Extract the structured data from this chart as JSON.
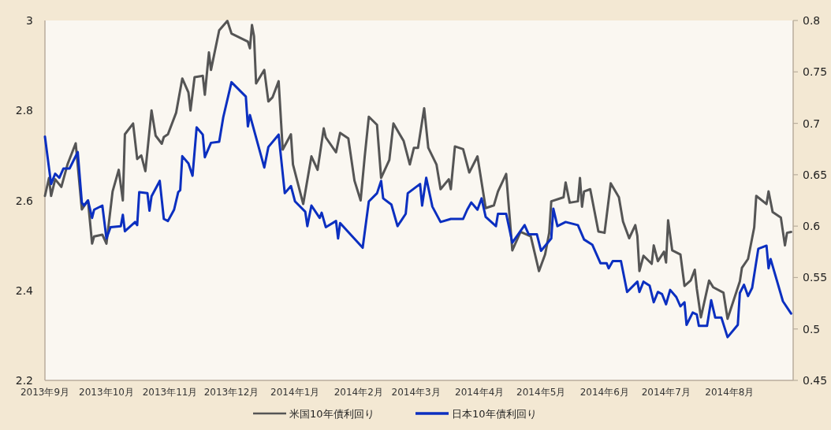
{
  "chart_data": {
    "type": "line",
    "xlim": [
      "2013-09-01",
      "2014-09-01"
    ],
    "xticks": [
      {
        "value": "2013-09-01",
        "label": "2013年9月"
      },
      {
        "value": "2013-10-01",
        "label": "2013年10月"
      },
      {
        "value": "2013-11-01",
        "label": "2013年11月"
      },
      {
        "value": "2013-12-01",
        "label": "2013年12月"
      },
      {
        "value": "2014-01-01",
        "label": "2014年1月"
      },
      {
        "value": "2014-02-01",
        "label": "2014年2月"
      },
      {
        "value": "2014-03-01",
        "label": "2014年3月"
      },
      {
        "value": "2014-04-01",
        "label": "2014年4月"
      },
      {
        "value": "2014-05-01",
        "label": "2014年5月"
      },
      {
        "value": "2014-06-01",
        "label": "2014年6月"
      },
      {
        "value": "2014-07-01",
        "label": "2014年7月"
      },
      {
        "value": "2014-08-01",
        "label": "2014年8月"
      }
    ],
    "ylim": [
      2.2,
      3
    ],
    "yticks": [
      2.2,
      2.4,
      2.6,
      2.8,
      3
    ],
    "y2lim": [
      0.45,
      0.8
    ],
    "y2ticks": [
      0.45,
      0.5,
      0.55,
      0.6,
      0.65,
      0.7,
      0.75,
      0.8
    ],
    "legend": "bottom",
    "grid": false,
    "series": [
      {
        "name": "米国10年債利回り",
        "color": "#555555",
        "x": [
          "2013-09-01",
          "2013-09-03",
          "2013-09-04",
          "2013-09-06",
          "2013-09-09",
          "2013-09-12",
          "2013-09-16",
          "2013-09-19",
          "2013-09-22",
          "2013-09-24",
          "2013-09-25",
          "2013-09-29",
          "2013-10-01",
          "2013-10-04",
          "2013-10-07",
          "2013-10-09",
          "2013-10-10",
          "2013-10-14",
          "2013-10-16",
          "2013-10-18",
          "2013-10-20",
          "2013-10-23",
          "2013-10-25",
          "2013-10-28",
          "2013-10-29",
          "2013-10-31",
          "2013-11-04",
          "2013-11-07",
          "2013-11-10",
          "2013-11-11",
          "2013-11-13",
          "2013-11-17",
          "2013-11-18",
          "2013-11-20",
          "2013-11-21",
          "2013-11-25",
          "2013-11-29",
          "2013-12-01",
          "2013-12-09",
          "2013-12-10",
          "2013-12-11",
          "2013-12-12",
          "2013-12-13",
          "2013-12-17",
          "2013-12-19",
          "2013-12-21",
          "2013-12-24",
          "2013-12-26",
          "2013-12-30",
          "2013-12-31",
          "2014-01-05",
          "2014-01-09",
          "2014-01-12",
          "2014-01-15",
          "2014-01-16",
          "2014-01-21",
          "2014-01-23",
          "2014-01-27",
          "2014-01-30",
          "2014-02-02",
          "2014-02-04",
          "2014-02-06",
          "2014-02-10",
          "2014-02-12",
          "2014-02-16",
          "2014-02-18",
          "2014-02-23",
          "2014-02-26",
          "2014-02-28",
          "2014-03-02",
          "2014-03-05",
          "2014-03-07",
          "2014-03-11",
          "2014-03-13",
          "2014-03-17",
          "2014-03-18",
          "2014-03-20",
          "2014-03-24",
          "2014-03-27",
          "2014-03-31",
          "2014-04-04",
          "2014-04-08",
          "2014-04-10",
          "2014-04-14",
          "2014-04-17",
          "2014-04-21",
          "2014-04-26",
          "2014-04-30",
          "2014-05-03",
          "2014-05-05",
          "2014-05-06",
          "2014-05-12",
          "2014-05-13",
          "2014-05-15",
          "2014-05-19",
          "2014-05-20",
          "2014-05-21",
          "2014-05-22",
          "2014-05-25",
          "2014-05-29",
          "2014-06-01",
          "2014-06-04",
          "2014-06-08",
          "2014-06-10",
          "2014-06-13",
          "2014-06-16",
          "2014-06-17",
          "2014-06-18",
          "2014-06-20",
          "2014-06-24",
          "2014-06-25",
          "2014-06-27",
          "2014-06-30",
          "2014-07-01",
          "2014-07-02",
          "2014-07-04",
          "2014-07-08",
          "2014-07-10",
          "2014-07-13",
          "2014-07-15",
          "2014-07-16",
          "2014-07-18",
          "2014-07-22",
          "2014-07-24",
          "2014-07-29",
          "2014-07-31",
          "2014-08-06",
          "2014-08-07",
          "2014-08-10",
          "2014-08-13",
          "2014-08-14",
          "2014-08-19",
          "2014-08-20",
          "2014-08-22",
          "2014-08-26",
          "2014-08-28",
          "2014-08-29",
          "2014-08-31"
        ],
        "values": [
          2.61,
          2.65,
          2.61,
          2.647,
          2.63,
          2.68,
          2.727,
          2.58,
          2.6,
          2.504,
          2.52,
          2.524,
          2.504,
          2.62,
          2.668,
          2.6,
          2.747,
          2.771,
          2.692,
          2.7,
          2.665,
          2.8,
          2.744,
          2.726,
          2.741,
          2.747,
          2.795,
          2.871,
          2.84,
          2.8,
          2.874,
          2.877,
          2.835,
          2.929,
          2.89,
          2.978,
          2.999,
          2.971,
          2.953,
          2.938,
          2.99,
          2.965,
          2.86,
          2.89,
          2.82,
          2.829,
          2.865,
          2.713,
          2.747,
          2.68,
          2.592,
          2.698,
          2.668,
          2.76,
          2.74,
          2.707,
          2.75,
          2.738,
          2.644,
          2.6,
          2.698,
          2.786,
          2.768,
          2.65,
          2.69,
          2.771,
          2.732,
          2.68,
          2.717,
          2.717,
          2.805,
          2.717,
          2.68,
          2.625,
          2.647,
          2.625,
          2.72,
          2.714,
          2.662,
          2.698,
          2.583,
          2.589,
          2.62,
          2.659,
          2.489,
          2.53,
          2.52,
          2.443,
          2.48,
          2.528,
          2.598,
          2.607,
          2.64,
          2.595,
          2.598,
          2.65,
          2.586,
          2.62,
          2.625,
          2.531,
          2.528,
          2.638,
          2.607,
          2.553,
          2.516,
          2.545,
          2.521,
          2.443,
          2.477,
          2.459,
          2.5,
          2.465,
          2.486,
          2.462,
          2.556,
          2.489,
          2.48,
          2.41,
          2.422,
          2.446,
          2.404,
          2.34,
          2.422,
          2.407,
          2.395,
          2.337,
          2.42,
          2.45,
          2.47,
          2.54,
          2.61,
          2.592,
          2.62,
          2.574,
          2.562,
          2.5,
          2.528,
          2.53
        ]
      },
      {
        "name": "日本10年債利回り",
        "color": "#0b2fc0",
        "axis": "y2",
        "x": [
          "2013-09-01",
          "2013-09-04",
          "2013-09-06",
          "2013-09-08",
          "2013-09-10",
          "2013-09-13",
          "2013-09-17",
          "2013-09-19",
          "2013-09-20",
          "2013-09-22",
          "2013-09-24",
          "2013-09-25",
          "2013-09-29",
          "2013-10-01",
          "2013-10-03",
          "2013-10-08",
          "2013-10-09",
          "2013-10-10",
          "2013-10-15",
          "2013-10-16",
          "2013-10-17",
          "2013-10-21",
          "2013-10-22",
          "2013-10-23",
          "2013-10-27",
          "2013-10-29",
          "2013-10-31",
          "2013-11-03",
          "2013-11-05",
          "2013-11-06",
          "2013-11-07",
          "2013-11-10",
          "2013-11-12",
          "2013-11-14",
          "2013-11-17",
          "2013-11-18",
          "2013-11-21",
          "2013-11-25",
          "2013-11-27",
          "2013-12-01",
          "2013-12-08",
          "2013-12-09",
          "2013-12-10",
          "2013-12-17",
          "2013-12-19",
          "2013-12-24",
          "2013-12-27",
          "2013-12-30",
          "2014-01-01",
          "2014-01-06",
          "2014-01-07",
          "2014-01-09",
          "2014-01-13",
          "2014-01-14",
          "2014-01-16",
          "2014-01-21",
          "2014-01-22",
          "2014-01-23",
          "2014-01-28",
          "2014-02-03",
          "2014-02-06",
          "2014-02-10",
          "2014-02-12",
          "2014-02-13",
          "2014-02-17",
          "2014-02-20",
          "2014-02-24",
          "2014-02-25",
          "2014-03-03",
          "2014-03-04",
          "2014-03-06",
          "2014-03-09",
          "2014-03-13",
          "2014-03-18",
          "2014-03-24",
          "2014-03-26",
          "2014-03-28",
          "2014-03-31",
          "2014-04-02",
          "2014-04-04",
          "2014-04-09",
          "2014-04-10",
          "2014-04-14",
          "2014-04-17",
          "2014-04-23",
          "2014-04-25",
          "2014-04-29",
          "2014-05-01",
          "2014-05-06",
          "2014-05-07",
          "2014-05-09",
          "2014-05-13",
          "2014-05-19",
          "2014-05-22",
          "2014-05-26",
          "2014-05-30",
          "2014-06-02",
          "2014-06-03",
          "2014-06-05",
          "2014-06-09",
          "2014-06-12",
          "2014-06-17",
          "2014-06-18",
          "2014-06-20",
          "2014-06-23",
          "2014-06-25",
          "2014-06-27",
          "2014-06-29",
          "2014-07-01",
          "2014-07-03",
          "2014-07-06",
          "2014-07-08",
          "2014-07-10",
          "2014-07-11",
          "2014-07-14",
          "2014-07-16",
          "2014-07-17",
          "2014-07-21",
          "2014-07-23",
          "2014-07-25",
          "2014-07-28",
          "2014-07-31",
          "2014-08-05",
          "2014-08-06",
          "2014-08-08",
          "2014-08-10",
          "2014-08-12",
          "2014-08-15",
          "2014-08-19",
          "2014-08-20",
          "2014-08-21",
          "2014-08-27",
          "2014-08-31"
        ],
        "values": [
          0.687,
          0.641,
          0.651,
          0.647,
          0.656,
          0.656,
          0.672,
          0.623,
          0.62,
          0.625,
          0.608,
          0.616,
          0.62,
          0.588,
          0.599,
          0.6,
          0.611,
          0.595,
          0.604,
          0.601,
          0.633,
          0.632,
          0.615,
          0.629,
          0.644,
          0.607,
          0.605,
          0.616,
          0.633,
          0.635,
          0.668,
          0.661,
          0.649,
          0.696,
          0.689,
          0.667,
          0.681,
          0.682,
          0.706,
          0.74,
          0.726,
          0.697,
          0.708,
          0.657,
          0.677,
          0.689,
          0.632,
          0.639,
          0.624,
          0.614,
          0.6,
          0.62,
          0.608,
          0.613,
          0.599,
          0.605,
          0.588,
          0.603,
          0.592,
          0.579,
          0.624,
          0.632,
          0.644,
          0.627,
          0.621,
          0.6,
          0.612,
          0.632,
          0.641,
          0.62,
          0.647,
          0.619,
          0.604,
          0.607,
          0.607,
          0.616,
          0.623,
          0.616,
          0.627,
          0.609,
          0.6,
          0.612,
          0.612,
          0.584,
          0.601,
          0.592,
          0.592,
          0.576,
          0.588,
          0.617,
          0.6,
          0.604,
          0.601,
          0.587,
          0.582,
          0.564,
          0.564,
          0.559,
          0.566,
          0.566,
          0.536,
          0.546,
          0.536,
          0.546,
          0.542,
          0.526,
          0.536,
          0.534,
          0.524,
          0.538,
          0.531,
          0.522,
          0.526,
          0.504,
          0.516,
          0.514,
          0.503,
          0.503,
          0.528,
          0.511,
          0.511,
          0.492,
          0.504,
          0.535,
          0.543,
          0.532,
          0.54,
          0.578,
          0.581,
          0.559,
          0.568,
          0.527,
          0.515
        ]
      }
    ]
  }
}
